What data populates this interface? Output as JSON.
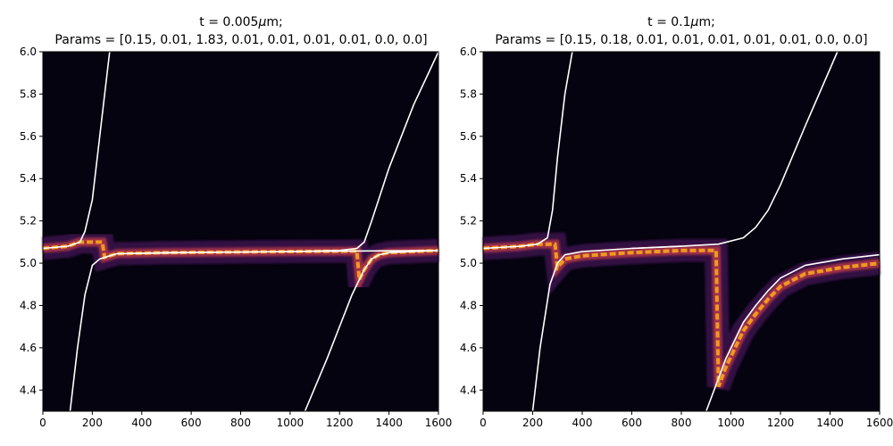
{
  "chart_data": [
    {
      "type": "heatmap",
      "title_line1": "t = 0.005",
      "title_unit": "μ",
      "title_unit_suffix": "m;",
      "title_line2": "Params = [0.15, 0.01, 1.83, 0.01, 0.01, 0.01, 0.01, 0.0, 0.0]",
      "xlim": [
        0,
        1600
      ],
      "ylim": [
        4.3,
        6.0
      ],
      "xticks": [
        0,
        200,
        400,
        600,
        800,
        1000,
        1200,
        1400,
        1600
      ],
      "yticks": [
        4.4,
        4.6,
        4.8,
        5.0,
        5.2,
        5.4,
        5.6,
        5.8,
        6.0
      ],
      "colormap": "inferno",
      "line_color": "#ffffff",
      "lines": [
        {
          "x": [
            0,
            100,
            150,
            170,
            200,
            230,
            260,
            270
          ],
          "y": [
            5.07,
            5.08,
            5.1,
            5.15,
            5.3,
            5.6,
            5.9,
            6.0
          ]
        },
        {
          "x": [
            110,
            140,
            170,
            200,
            230,
            270,
            300,
            500,
            1000,
            1600
          ],
          "y": [
            4.3,
            4.6,
            4.85,
            4.99,
            5.02,
            5.035,
            5.045,
            5.05,
            5.055,
            5.06
          ]
        },
        {
          "x": [
            300,
            600,
            1000,
            1200,
            1270,
            1300,
            1330,
            1400,
            1500,
            1600
          ],
          "y": [
            5.045,
            5.05,
            5.055,
            5.06,
            5.07,
            5.1,
            5.2,
            5.45,
            5.75,
            6.0
          ]
        },
        {
          "x": [
            1060,
            1150,
            1250,
            1300,
            1330,
            1360,
            1400,
            1500,
            1600
          ],
          "y": [
            4.3,
            4.55,
            4.85,
            4.97,
            5.02,
            5.04,
            5.05,
            5.055,
            5.06
          ]
        }
      ]
    },
    {
      "type": "heatmap",
      "title_line1": "t = 0.1",
      "title_unit": "μ",
      "title_unit_suffix": "m;",
      "title_line2": "Params = [0.15, 0.18, 0.01, 0.01, 0.01, 0.01, 0.01, 0.0, 0.0]",
      "xlim": [
        0,
        1600
      ],
      "ylim": [
        4.3,
        6.0
      ],
      "xticks": [
        0,
        200,
        400,
        600,
        800,
        1000,
        1200,
        1400,
        1600
      ],
      "yticks": [
        4.4,
        4.6,
        4.8,
        5.0,
        5.2,
        5.4,
        5.6,
        5.8,
        6.0
      ],
      "colormap": "inferno",
      "line_color": "#ffffff",
      "lines": [
        {
          "x": [
            0,
            150,
            220,
            260,
            280,
            300,
            330,
            360
          ],
          "y": [
            5.07,
            5.08,
            5.09,
            5.12,
            5.25,
            5.5,
            5.8,
            6.0
          ]
        },
        {
          "x": [
            200,
            230,
            270,
            300,
            330,
            400,
            600,
            800
          ],
          "y": [
            4.3,
            4.6,
            4.9,
            5.0,
            5.04,
            5.055,
            5.07,
            5.08
          ]
        },
        {
          "x": [
            600,
            800,
            950,
            1050,
            1100,
            1150,
            1200,
            1300,
            1430
          ],
          "y": [
            5.07,
            5.08,
            5.09,
            5.12,
            5.17,
            5.25,
            5.37,
            5.65,
            6.0
          ]
        },
        {
          "x": [
            900,
            980,
            1050,
            1100,
            1150,
            1200,
            1300,
            1450,
            1600
          ],
          "y": [
            4.3,
            4.55,
            4.72,
            4.8,
            4.87,
            4.93,
            4.99,
            5.02,
            5.04
          ]
        }
      ]
    }
  ]
}
